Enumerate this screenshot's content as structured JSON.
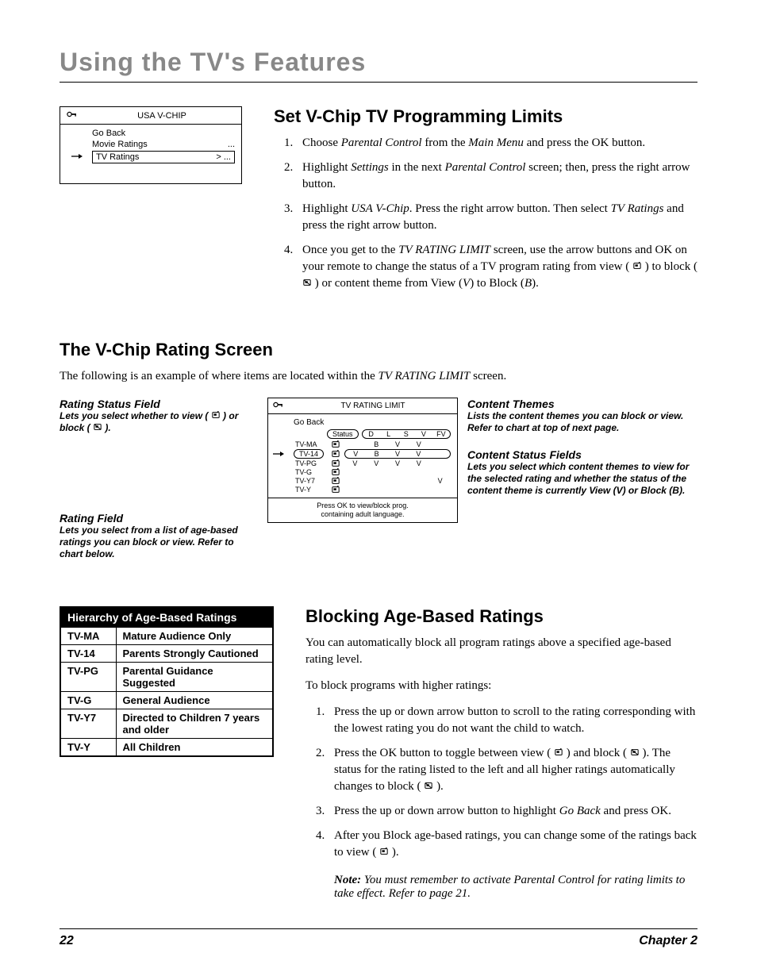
{
  "page": {
    "title": "Using the TV's Features",
    "number": "22",
    "chapter": "Chapter 2"
  },
  "menu_box": {
    "title": "USA V-CHIP",
    "items": [
      {
        "label": "Go Back",
        "ext": ""
      },
      {
        "label": "Movie Ratings",
        "ext": "..."
      }
    ],
    "selected": {
      "label": "TV Ratings",
      "ext": "> ..."
    }
  },
  "section1": {
    "title": "Set V-Chip TV Programming Limits",
    "steps": {
      "s1a": "Choose ",
      "s1b": "Parental Control",
      "s1c": " from the ",
      "s1d": "Main Menu",
      "s1e": " and press the OK button.",
      "s2a": "Highlight ",
      "s2b": "Settings",
      "s2c": " in the next ",
      "s2d": "Parental Control",
      "s2e": " screen; then, press the right arrow button.",
      "s3a": "Highlight ",
      "s3b": "USA V-Chip",
      "s3c": ". Press the right arrow button. Then select ",
      "s3d": "TV Ratings",
      "s3e": " and press the right arrow button.",
      "s4a": "Once you get to the ",
      "s4b": "TV RATING LIMIT",
      "s4c": " screen, use the arrow buttons and OK on your remote to change the status of a TV program rating from view ( ",
      "s4d": " ) to block ( ",
      "s4e": " ) or content theme from View (",
      "s4f": "V",
      "s4g": ") to Block (",
      "s4h": "B",
      "s4i": ")."
    }
  },
  "section2": {
    "title": "The V-Chip Rating Screen",
    "intro_a": "The following is an example of where items are located within the ",
    "intro_b": "TV RATING LIMIT",
    "intro_c": " screen."
  },
  "callouts": {
    "left1_title": "Rating Status Field",
    "left1_body_a": "Lets you select whether to view ( ",
    "left1_body_b": " ) or block ( ",
    "left1_body_c": " ).",
    "left2_title": "Rating Field",
    "left2_body": "Lets you select from a list of age-based ratings you can block or view. Refer to chart below.",
    "right1_title": "Content Themes",
    "right1_body": "Lists the content themes you can block or view. Refer to chart at top of next page.",
    "right2_title": "Content Status Fields",
    "right2_body": "Lets you select which content themes to view for the selected rating and whether the status of the content theme is currently View (V) or Block (B)."
  },
  "rating_screen": {
    "title": "TV RATING LIMIT",
    "goback": "Go Back",
    "status_label": "Status",
    "themes": [
      "D",
      "L",
      "S",
      "V",
      "FV"
    ],
    "rows": [
      {
        "label": "TV-MA",
        "cells": [
          "",
          "B",
          "V",
          "V",
          ""
        ]
      },
      {
        "label": "TV-14",
        "cells": [
          "V",
          "B",
          "V",
          "V",
          ""
        ],
        "highlighted": true
      },
      {
        "label": "TV-PG",
        "cells": [
          "V",
          "V",
          "V",
          "V",
          ""
        ]
      },
      {
        "label": "TV-G",
        "cells": [
          "",
          "",
          "",
          "",
          ""
        ]
      },
      {
        "label": "TV-Y7",
        "cells": [
          "",
          "",
          "",
          "",
          "V"
        ]
      },
      {
        "label": "TV-Y",
        "cells": [
          "",
          "",
          "",
          "",
          ""
        ]
      }
    ],
    "footer1": "Press OK to view/block prog.",
    "footer2": "containing adult language."
  },
  "ratings_table": {
    "header": "Hierarchy of Age-Based Ratings",
    "rows": [
      {
        "code": "TV-MA",
        "desc": "Mature Audience Only"
      },
      {
        "code": "TV-14",
        "desc": "Parents Strongly Cautioned"
      },
      {
        "code": "TV-PG",
        "desc": "Parental Guidance Suggested"
      },
      {
        "code": "TV-G",
        "desc": "General Audience"
      },
      {
        "code": "TV-Y7",
        "desc": "Directed to Children 7 years and older"
      },
      {
        "code": "TV-Y",
        "desc": "All Children"
      }
    ]
  },
  "section3": {
    "title": "Blocking Age-Based Ratings",
    "p1": "You can automatically block all program ratings above a specified age-based rating level.",
    "p2": "To block programs with higher ratings:",
    "steps": {
      "s1": "Press the up or down arrow button to scroll to the rating corresponding with the lowest rating you do not want the child to watch.",
      "s2a": "Press the OK button to toggle between view ( ",
      "s2b": " ) and block ( ",
      "s2c": " ). The status for the rating listed to the left and all higher ratings automatically changes to block ( ",
      "s2d": " ).",
      "s3a": "Press the up or down arrow button to highlight ",
      "s3b": "Go Back",
      "s3c": " and press OK.",
      "s4a": "After you Block age-based ratings, you can change some of the ratings back to view ( ",
      "s4b": " )."
    },
    "note_label": "Note:",
    "note_body": " You must remember to activate Parental Control for rating limits to take effect. Refer to page 21."
  }
}
